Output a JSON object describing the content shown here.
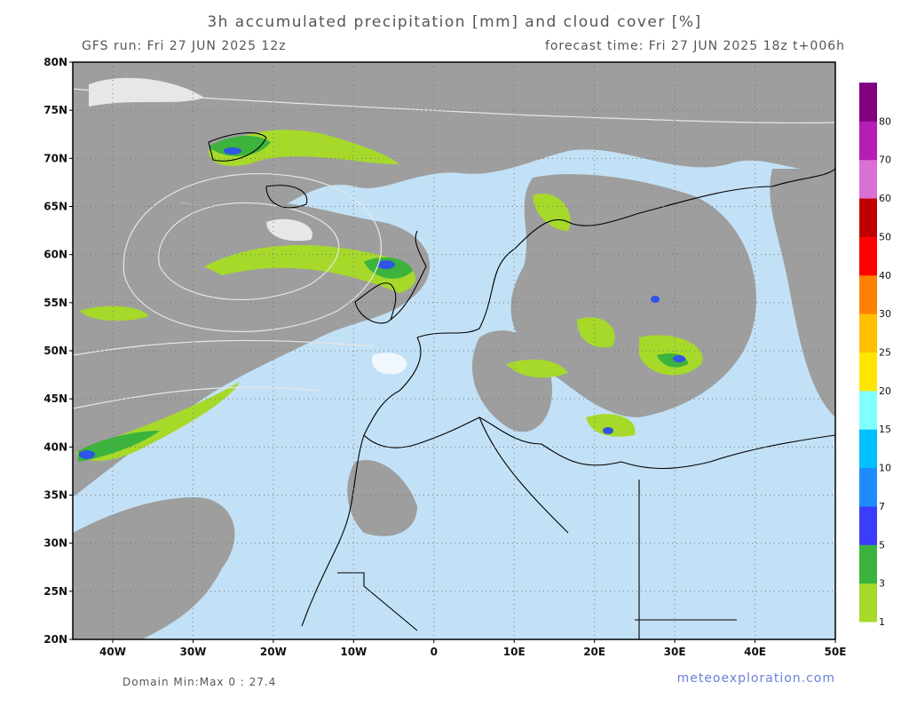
{
  "header": {
    "title": "3h accumulated precipitation [mm] and cloud cover [%]",
    "run": "GFS run: Fri 27 JUN 2025 12z",
    "forecast": "forecast time: Fri 27 JUN 2025 18z  t+006h"
  },
  "axes": {
    "latitudes": [
      "80N",
      "75N",
      "70N",
      "65N",
      "60N",
      "55N",
      "50N",
      "45N",
      "40N",
      "35N",
      "30N",
      "25N",
      "20N"
    ],
    "longitudes": [
      "40W",
      "30W",
      "20W",
      "10W",
      "0",
      "10E",
      "20E",
      "30E",
      "40E",
      "50E"
    ]
  },
  "colorbar": {
    "labels": [
      "1",
      "3",
      "5",
      "7",
      "10",
      "15",
      "20",
      "25",
      "30",
      "40",
      "50",
      "60",
      "70",
      "80"
    ],
    "colors": [
      "#a6d92a",
      "#3cb33c",
      "#3c3cff",
      "#1e8cff",
      "#00bfff",
      "#80ffff",
      "#ffe600",
      "#ffc000",
      "#ff8000",
      "#ff0000",
      "#c00000",
      "#da70d6",
      "#b41eb4",
      "#800080"
    ]
  },
  "footer": {
    "domain": "Domain Min:Max 0 : 27.4",
    "site": "meteoexploration.com"
  }
}
